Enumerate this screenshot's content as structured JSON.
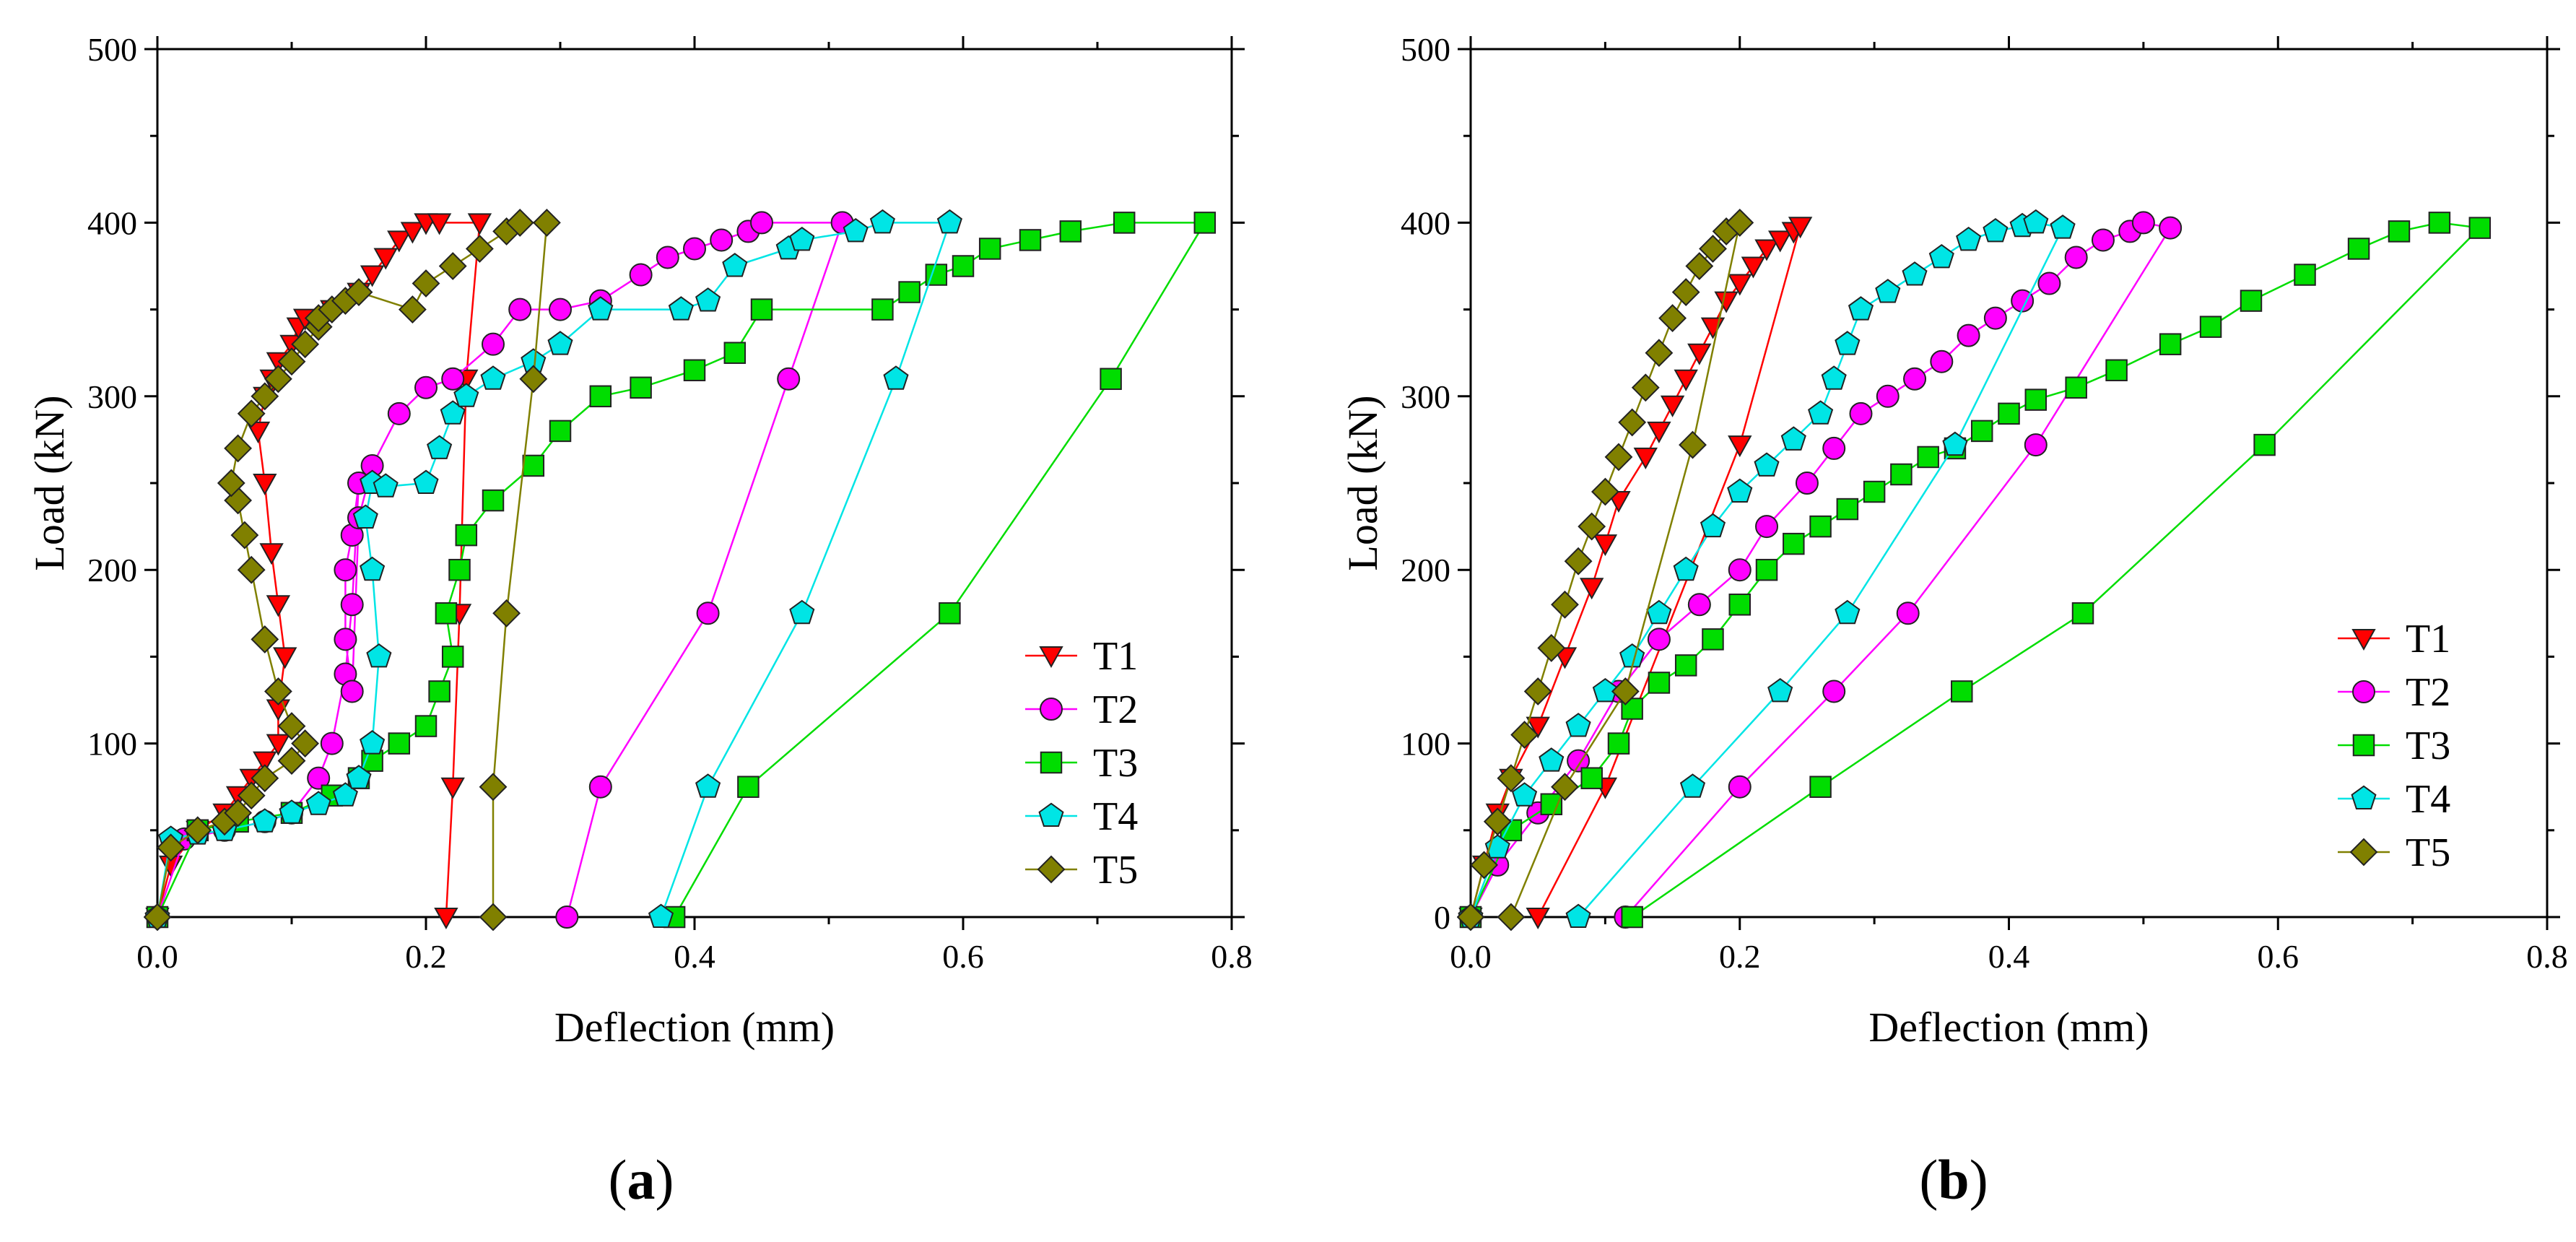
{
  "chart_data": [
    {
      "type": "scatter",
      "panel_label": "a",
      "xlabel": "Deflection (mm)",
      "ylabel": "Load (kN)",
      "xlim": [
        0,
        0.8
      ],
      "ylim": [
        0,
        500
      ],
      "x_ticks": [
        "0.0",
        "0.2",
        "0.4",
        "0.6",
        "0.8"
      ],
      "y_ticks": [
        "100",
        "200",
        "300",
        "400",
        "500"
      ],
      "legend_position": "bottom-right",
      "series": [
        {
          "name": "T1",
          "color": "#ff0000",
          "marker": "triangle-down",
          "x": [
            0.0,
            0.01,
            0.03,
            0.05,
            0.06,
            0.07,
            0.08,
            0.09,
            0.09,
            0.095,
            0.09,
            0.085,
            0.08,
            0.075,
            0.08,
            0.085,
            0.09,
            0.1,
            0.105,
            0.11,
            0.13,
            0.15,
            0.16,
            0.17,
            0.18,
            0.19,
            0.2,
            0.21,
            0.24,
            0.23,
            0.225,
            0.22,
            0.215
          ],
          "y": [
            0,
            30,
            50,
            60,
            70,
            80,
            90,
            100,
            120,
            150,
            180,
            210,
            250,
            280,
            300,
            310,
            320,
            330,
            340,
            345,
            350,
            360,
            370,
            380,
            390,
            395,
            400,
            400,
            400,
            310,
            175,
            75,
            0
          ]
        },
        {
          "name": "T2",
          "color": "#ff00ff",
          "marker": "circle",
          "x": [
            0.0,
            0.02,
            0.05,
            0.08,
            0.1,
            0.12,
            0.13,
            0.14,
            0.145,
            0.15,
            0.145,
            0.14,
            0.14,
            0.145,
            0.15,
            0.16,
            0.18,
            0.2,
            0.22,
            0.25,
            0.27,
            0.3,
            0.33,
            0.36,
            0.38,
            0.4,
            0.42,
            0.44,
            0.45,
            0.51,
            0.47,
            0.41,
            0.33,
            0.305
          ],
          "y": [
            0,
            45,
            50,
            55,
            60,
            80,
            100,
            140,
            180,
            250,
            220,
            200,
            160,
            130,
            230,
            260,
            290,
            305,
            310,
            330,
            350,
            350,
            355,
            370,
            380,
            385,
            390,
            395,
            400,
            400,
            310,
            175,
            75,
            0
          ]
        },
        {
          "name": "T3",
          "color": "#00dd00",
          "marker": "square",
          "x": [
            0.0,
            0.03,
            0.06,
            0.1,
            0.13,
            0.15,
            0.16,
            0.18,
            0.2,
            0.21,
            0.22,
            0.215,
            0.225,
            0.23,
            0.25,
            0.28,
            0.3,
            0.33,
            0.36,
            0.4,
            0.43,
            0.45,
            0.54,
            0.56,
            0.58,
            0.6,
            0.62,
            0.65,
            0.68,
            0.72,
            0.78,
            0.71,
            0.59,
            0.44,
            0.385
          ],
          "y": [
            0,
            50,
            55,
            60,
            70,
            80,
            90,
            100,
            110,
            130,
            150,
            175,
            200,
            220,
            240,
            260,
            280,
            300,
            305,
            315,
            325,
            350,
            350,
            360,
            370,
            375,
            385,
            390,
            395,
            400,
            400,
            310,
            175,
            75,
            0
          ]
        },
        {
          "name": "T4",
          "color": "#00e5e5",
          "marker": "pentagon",
          "x": [
            0.0,
            0.01,
            0.03,
            0.05,
            0.08,
            0.1,
            0.12,
            0.14,
            0.15,
            0.16,
            0.165,
            0.16,
            0.155,
            0.16,
            0.17,
            0.2,
            0.21,
            0.22,
            0.23,
            0.25,
            0.28,
            0.3,
            0.33,
            0.39,
            0.41,
            0.43,
            0.47,
            0.48,
            0.52,
            0.54,
            0.59,
            0.55,
            0.48,
            0.41,
            0.375
          ],
          "y": [
            0,
            45,
            48,
            50,
            55,
            60,
            65,
            70,
            80,
            100,
            150,
            200,
            230,
            250,
            248,
            250,
            270,
            290,
            300,
            310,
            320,
            330,
            350,
            350,
            355,
            375,
            385,
            390,
            395,
            400,
            400,
            310,
            175,
            75,
            0
          ]
        },
        {
          "name": "T5",
          "color": "#808000",
          "marker": "diamond",
          "x": [
            0.0,
            0.01,
            0.03,
            0.05,
            0.06,
            0.07,
            0.08,
            0.1,
            0.11,
            0.1,
            0.09,
            0.08,
            0.07,
            0.065,
            0.06,
            0.055,
            0.06,
            0.07,
            0.08,
            0.09,
            0.1,
            0.11,
            0.12,
            0.12,
            0.13,
            0.14,
            0.15,
            0.19,
            0.2,
            0.22,
            0.24,
            0.26,
            0.27,
            0.29,
            0.28,
            0.26,
            0.25,
            0.25
          ],
          "y": [
            0,
            40,
            50,
            55,
            60,
            70,
            80,
            90,
            100,
            110,
            130,
            160,
            200,
            220,
            240,
            250,
            270,
            290,
            300,
            310,
            320,
            330,
            340,
            345,
            350,
            355,
            360,
            350,
            365,
            375,
            385,
            395,
            400,
            400,
            310,
            175,
            75,
            0
          ]
        }
      ]
    },
    {
      "type": "scatter",
      "panel_label": "b",
      "xlabel": "Deflection (mm)",
      "ylabel": "Load (kN)",
      "xlim": [
        0,
        0.8
      ],
      "ylim": [
        0,
        500
      ],
      "x_ticks": [
        "0.0",
        "0.2",
        "0.4",
        "0.6",
        "0.8"
      ],
      "y_ticks": [
        "0",
        "100",
        "200",
        "300",
        "400",
        "500"
      ],
      "legend_position": "bottom-right",
      "series": [
        {
          "name": "T1",
          "color": "#ff0000",
          "marker": "triangle-down",
          "x": [
            0.0,
            0.01,
            0.02,
            0.03,
            0.05,
            0.07,
            0.09,
            0.1,
            0.11,
            0.13,
            0.14,
            0.15,
            0.16,
            0.17,
            0.18,
            0.19,
            0.2,
            0.21,
            0.22,
            0.23,
            0.24,
            0.245,
            0.2,
            0.1,
            0.05
          ],
          "y": [
            0,
            30,
            60,
            80,
            110,
            150,
            190,
            215,
            240,
            265,
            280,
            295,
            310,
            325,
            340,
            355,
            365,
            375,
            385,
            390,
            395,
            398,
            272,
            75,
            0
          ]
        },
        {
          "name": "T2",
          "color": "#ff00ff",
          "marker": "circle",
          "x": [
            0.0,
            0.02,
            0.05,
            0.08,
            0.11,
            0.14,
            0.17,
            0.2,
            0.22,
            0.25,
            0.27,
            0.29,
            0.31,
            0.33,
            0.35,
            0.37,
            0.39,
            0.41,
            0.43,
            0.45,
            0.47,
            0.49,
            0.5,
            0.52,
            0.42,
            0.325,
            0.27,
            0.2,
            0.115
          ],
          "y": [
            0,
            30,
            60,
            90,
            130,
            160,
            180,
            200,
            225,
            250,
            270,
            290,
            300,
            310,
            320,
            335,
            345,
            355,
            365,
            380,
            390,
            395,
            400,
            397,
            272,
            175,
            130,
            75,
            0
          ]
        },
        {
          "name": "T3",
          "color": "#00dd00",
          "marker": "square",
          "x": [
            0.0,
            0.03,
            0.06,
            0.09,
            0.11,
            0.12,
            0.14,
            0.16,
            0.18,
            0.2,
            0.22,
            0.24,
            0.26,
            0.28,
            0.3,
            0.32,
            0.34,
            0.36,
            0.38,
            0.4,
            0.42,
            0.45,
            0.48,
            0.52,
            0.55,
            0.58,
            0.62,
            0.66,
            0.69,
            0.72,
            0.75,
            0.59,
            0.455,
            0.365,
            0.26,
            0.12
          ],
          "y": [
            0,
            50,
            65,
            80,
            100,
            120,
            135,
            145,
            160,
            180,
            200,
            215,
            225,
            235,
            245,
            255,
            265,
            270,
            280,
            290,
            298,
            305,
            315,
            330,
            340,
            355,
            370,
            385,
            395,
            400,
            397,
            272,
            175,
            130,
            75,
            0
          ]
        },
        {
          "name": "T4",
          "color": "#00e5e5",
          "marker": "pentagon",
          "x": [
            0.0,
            0.02,
            0.04,
            0.06,
            0.08,
            0.1,
            0.12,
            0.14,
            0.16,
            0.18,
            0.2,
            0.22,
            0.24,
            0.26,
            0.27,
            0.28,
            0.29,
            0.31,
            0.33,
            0.35,
            0.37,
            0.39,
            0.41,
            0.42,
            0.44,
            0.36,
            0.28,
            0.23,
            0.165,
            0.08
          ],
          "y": [
            0,
            40,
            70,
            90,
            110,
            130,
            150,
            175,
            200,
            225,
            245,
            260,
            275,
            290,
            310,
            330,
            350,
            360,
            370,
            380,
            390,
            395,
            398,
            400,
            397,
            272,
            175,
            130,
            75,
            0
          ]
        },
        {
          "name": "T5",
          "color": "#808000",
          "marker": "diamond",
          "x": [
            0.0,
            0.01,
            0.02,
            0.03,
            0.04,
            0.05,
            0.06,
            0.07,
            0.08,
            0.09,
            0.1,
            0.11,
            0.12,
            0.13,
            0.14,
            0.15,
            0.16,
            0.17,
            0.18,
            0.19,
            0.2,
            0.165,
            0.115,
            0.07,
            0.03
          ],
          "y": [
            0,
            30,
            55,
            80,
            105,
            130,
            155,
            180,
            205,
            225,
            245,
            265,
            285,
            305,
            325,
            345,
            360,
            375,
            385,
            395,
            400,
            272,
            130,
            75,
            0
          ]
        }
      ]
    }
  ],
  "captions": [
    {
      "open": "(",
      "letter": "a",
      "close": ")"
    },
    {
      "open": "(",
      "letter": "b",
      "close": ")"
    }
  ]
}
